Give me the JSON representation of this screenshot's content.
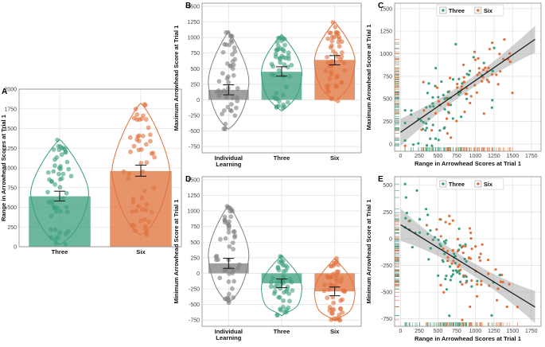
{
  "colors": {
    "three": "#3a9e7c",
    "six": "#e0703a",
    "indiv": "#7f7f7f",
    "grid": "#e4e4e4",
    "panel": "#ffffff"
  },
  "chart_data": [
    {
      "panel": "A",
      "type": "bar",
      "categories": [
        "Three",
        "Six"
      ],
      "values": [
        640,
        960
      ],
      "ci": [
        [
          580,
          705
        ],
        [
          895,
          1035
        ]
      ],
      "ylabel": "Range in Arrowhead Scores at Trial 1",
      "ylim": [
        0,
        2000
      ],
      "yticks": [
        0,
        250,
        500,
        750,
        1000,
        1250,
        1500,
        1750,
        2000
      ],
      "violins": [
        [
          30,
          1360
        ],
        [
          150,
          1820
        ]
      ]
    },
    {
      "panel": "B",
      "type": "bar",
      "categories": [
        "Individual Learning",
        "Three",
        "Six"
      ],
      "values": [
        160,
        450,
        640
      ],
      "ci": [
        [
          80,
          240
        ],
        [
          380,
          530
        ],
        [
          560,
          710
        ]
      ],
      "ylabel": "Maximum Arrowhead Score at Trial 1",
      "ylim": [
        -850,
        1550
      ],
      "yticks": [
        -750,
        -500,
        -250,
        0,
        250,
        500,
        750,
        1000,
        1250,
        1500
      ],
      "violins": [
        [
          -470,
          1090
        ],
        [
          -180,
          1050
        ],
        [
          -20,
          1250
        ]
      ]
    },
    {
      "panel": "C",
      "type": "scatter",
      "xlabel": "Range in Arrowhead Scores at Trial 1",
      "ylabel": "Maximum Arrowhead Score at Trial 1",
      "xlim": [
        -80,
        1880
      ],
      "ylim": [
        -80,
        1560
      ],
      "xticks": [
        0,
        250,
        500,
        750,
        1000,
        1250,
        1500,
        1750
      ],
      "yticks": [
        0,
        250,
        500,
        750,
        1000,
        1250,
        1500
      ],
      "legend": [
        "Three",
        "Six"
      ],
      "legend_position": "top",
      "fit": [
        [
          0,
          130
        ],
        [
          1800,
          1160
        ]
      ]
    },
    {
      "panel": "D",
      "type": "bar",
      "categories": [
        "Individual Learning",
        "Three",
        "Six"
      ],
      "values": [
        160,
        -160,
        -290
      ],
      "ci": [
        [
          80,
          240
        ],
        [
          -230,
          -90
        ],
        [
          -360,
          -220
        ]
      ],
      "ylabel": "Minimum Arrowhead Score at Trial 1",
      "ylim": [
        -850,
        1550
      ],
      "yticks": [
        -750,
        -500,
        -250,
        0,
        250,
        500,
        750,
        1000,
        1250,
        1500
      ],
      "violins": [
        [
          -470,
          1090
        ],
        [
          -680,
          290
        ],
        [
          -760,
          240
        ]
      ]
    },
    {
      "panel": "E",
      "type": "scatter",
      "xlabel": "Range in Arrowhead Scores at Trial 1",
      "ylabel": "Minimum Arrowhead Score at Trial 1",
      "xlim": [
        -80,
        1880
      ],
      "ylim": [
        -820,
        580
      ],
      "xticks": [
        0,
        250,
        500,
        750,
        1000,
        1250,
        1500,
        1750
      ],
      "yticks": [
        -750,
        -500,
        -250,
        0,
        250,
        500
      ],
      "legend": [
        "Three",
        "Six"
      ],
      "legend_position": "top",
      "fit": [
        [
          0,
          130
        ],
        [
          1800,
          -640
        ]
      ]
    }
  ]
}
